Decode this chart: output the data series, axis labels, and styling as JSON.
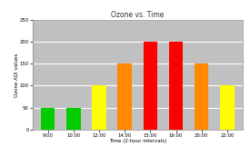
{
  "title": "Ozone vs. Time",
  "xlabel": "Time (2-hour intervals)",
  "ylabel": "Ozone AQI values",
  "categories": [
    "9:00",
    "10:00",
    "12:00",
    "14:00",
    "15:00",
    "16:00",
    "20:00",
    "22:00"
  ],
  "values": [
    50,
    50,
    100,
    150,
    200,
    200,
    150,
    100
  ],
  "bar_colors": [
    "#00cc00",
    "#00cc00",
    "#ffff00",
    "#ff8800",
    "#ff0000",
    "#ff0000",
    "#ff8800",
    "#ffff00"
  ],
  "ylim": [
    0,
    250
  ],
  "yticks": [
    0,
    50,
    100,
    150,
    200,
    250
  ],
  "fig_bg_color": "#ffffff",
  "plot_bg_color": "#c0c0c0",
  "grid_color": "#ffffff",
  "title_fontsize": 5.5,
  "axis_label_fontsize": 4,
  "tick_fontsize": 3.8,
  "bar_width": 0.55
}
